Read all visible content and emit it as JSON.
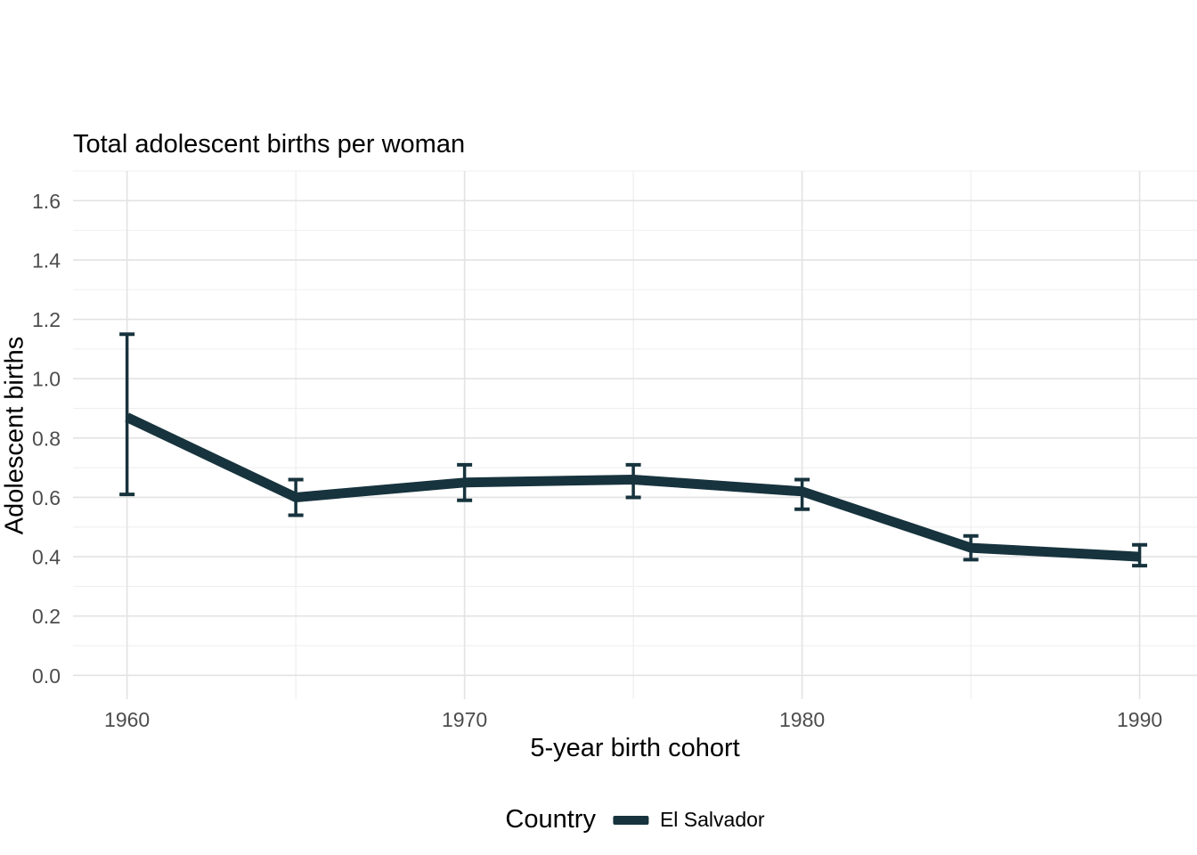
{
  "title": "Total adolescent births per woman",
  "axes": {
    "x_label": "5-year birth cohort",
    "y_label": "Adolescent births"
  },
  "legend": {
    "title": "Country",
    "items": [
      {
        "label": "El Salvador",
        "color": "#17333d"
      }
    ]
  },
  "chart_data": {
    "type": "line",
    "title": "Total adolescent births per woman",
    "xlabel": "5-year birth cohort",
    "ylabel": "Adolescent births",
    "series": [
      {
        "name": "El Salvador",
        "color": "#17333d",
        "x": [
          1960,
          1965,
          1970,
          1975,
          1980,
          1985,
          1990
        ],
        "y": [
          0.87,
          0.6,
          0.65,
          0.66,
          0.62,
          0.43,
          0.4
        ],
        "y_low": [
          0.61,
          0.54,
          0.59,
          0.6,
          0.56,
          0.39,
          0.37
        ],
        "y_high": [
          1.15,
          0.66,
          0.71,
          0.71,
          0.66,
          0.47,
          0.44
        ],
        "error_bars": true
      }
    ],
    "x_ticks": [
      {
        "value": 1960,
        "label": "1960"
      },
      {
        "value": 1970,
        "label": "1970"
      },
      {
        "value": 1980,
        "label": "1980"
      },
      {
        "value": 1990,
        "label": "1990"
      }
    ],
    "x_minor_breaks": [
      1965,
      1975,
      1985
    ],
    "y_ticks": [
      {
        "value": 0.0,
        "label": "0.0"
      },
      {
        "value": 0.2,
        "label": "0.2"
      },
      {
        "value": 0.4,
        "label": "0.4"
      },
      {
        "value": 0.6,
        "label": "0.6"
      },
      {
        "value": 0.8,
        "label": "0.8"
      },
      {
        "value": 1.0,
        "label": "1.0"
      },
      {
        "value": 1.2,
        "label": "1.2"
      },
      {
        "value": 1.4,
        "label": "1.4"
      },
      {
        "value": 1.6,
        "label": "1.6"
      }
    ],
    "y_minor_breaks": [
      0.1,
      0.3,
      0.5,
      0.7,
      0.9,
      1.1,
      1.3,
      1.5,
      1.7
    ],
    "xlim": [
      1958.4,
      1991.7
    ],
    "ylim": [
      -0.08,
      1.7
    ],
    "grid": true,
    "legend_position": "bottom"
  },
  "style": {
    "background": "#ffffff",
    "series_color": "#17333d",
    "grid_major_color": "#e3e3e3",
    "grid_minor_color": "#efefef",
    "tick_label_color": "#4d4d4d",
    "text_color": "#000000"
  }
}
